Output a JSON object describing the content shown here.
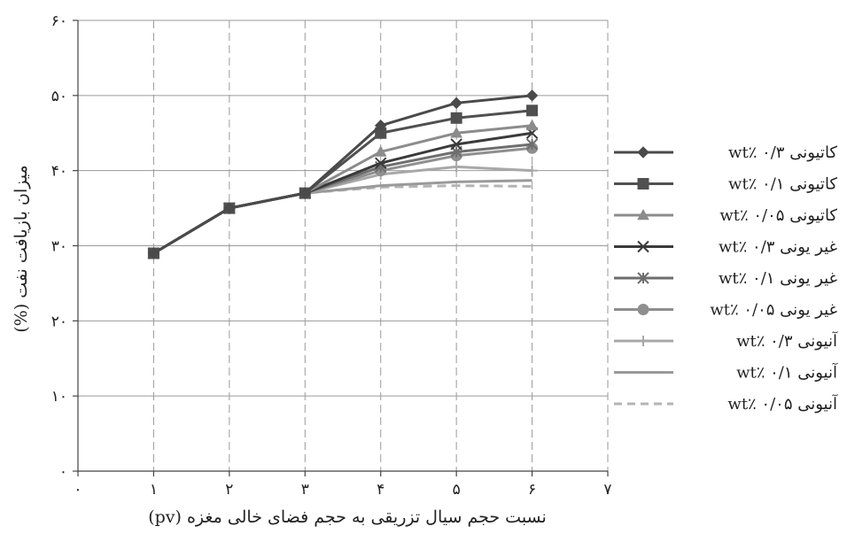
{
  "chart_data": {
    "type": "line",
    "title": "",
    "xlabel": "نسبت حجم سیال تزریقی به حجم فضای خالی مغزه (pv)",
    "ylabel": "میزان بازیافت نفت (%)",
    "xlim": [
      0,
      7
    ],
    "ylim": [
      0,
      60
    ],
    "x_ticks": [
      0,
      1,
      2,
      3,
      4,
      5,
      6,
      7
    ],
    "y_ticks": [
      0,
      10,
      20,
      30,
      40,
      50,
      60
    ],
    "x_tick_labels": [
      "۰",
      "۱",
      "۲",
      "۳",
      "۴",
      "۵",
      "۶",
      "۷"
    ],
    "y_tick_labels": [
      "۰",
      "۱۰",
      "۲۰",
      "۳۰",
      "۴۰",
      "۵۰",
      "۶۰"
    ],
    "grid": {
      "horizontal": "solid",
      "vertical": "dashed"
    },
    "legend_position": "right",
    "x": [
      1,
      2,
      3,
      4,
      5,
      6
    ],
    "series": [
      {
        "name": "کاتیونی wt٪ ۰/۳",
        "values": [
          29,
          35,
          37,
          46,
          49,
          50
        ],
        "color": "#4a4a4a",
        "marker": "diamond",
        "dash": "solid"
      },
      {
        "name": "کاتیونی wt٪ ۰/۱",
        "values": [
          29,
          35,
          37,
          45,
          47,
          48
        ],
        "color": "#505050",
        "marker": "square",
        "dash": "solid"
      },
      {
        "name": "کاتیونی wt٪ ۰/۰۵",
        "values": [
          29,
          35,
          37,
          42.5,
          45,
          46
        ],
        "color": "#8c8c8c",
        "marker": "triangle",
        "dash": "solid"
      },
      {
        "name": "غیر یونی wt٪ ۰/۳",
        "values": [
          29,
          35,
          37,
          41,
          43.5,
          45
        ],
        "color": "#3a3a3a",
        "marker": "x",
        "dash": "solid"
      },
      {
        "name": "غیر یونی wt٪ ۰/۱",
        "values": [
          29,
          35,
          37,
          40.5,
          42.5,
          43.5
        ],
        "color": "#6e6e6e",
        "marker": "asterisk",
        "dash": "solid"
      },
      {
        "name": "غیر یونی wt٪ ۰/۰۵",
        "values": [
          29,
          35,
          37,
          40,
          42,
          43
        ],
        "color": "#8f8f8f",
        "marker": "circle",
        "dash": "solid"
      },
      {
        "name": "آنیونی wt٪ ۰/۳",
        "values": [
          29,
          35,
          37,
          39.5,
          40.5,
          40
        ],
        "color": "#a8a8a8",
        "marker": "plus",
        "dash": "solid"
      },
      {
        "name": "آنیونی wt٪ ۰/۱",
        "values": [
          29,
          35,
          37,
          38,
          38.5,
          38.7
        ],
        "color": "#9a9a9a",
        "marker": "none",
        "dash": "solid"
      },
      {
        "name": "آنیونی wt٪ ۰/۰۵",
        "values": [
          29,
          35,
          37,
          37.8,
          38,
          37.9
        ],
        "color": "#b4b4b4",
        "marker": "none",
        "dash": "dashed"
      }
    ]
  }
}
